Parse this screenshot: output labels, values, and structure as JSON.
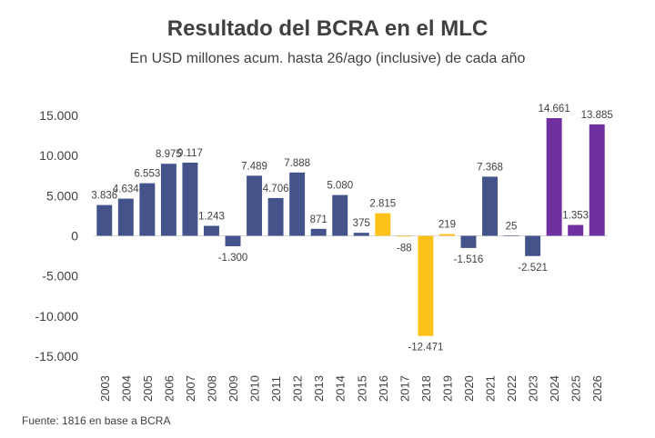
{
  "chart_data": {
    "type": "bar",
    "title": "Resultado del BCRA en el MLC",
    "subtitle": "En USD millones acum. hasta 26/ago (inclusive) de cada año",
    "source": "Fuente: 1816 en base a BCRA",
    "xlabel": "",
    "ylabel": "",
    "ylim": [
      -15000,
      15000
    ],
    "yticks": [
      15000,
      10000,
      5000,
      0,
      -5000,
      -10000,
      -15000
    ],
    "ytick_labels": [
      "15.000",
      "10.000",
      "5.000",
      "0",
      "-5.000",
      "-10.000",
      "-15.000"
    ],
    "grid": false,
    "legend": "none",
    "categories": [
      "2003",
      "2004",
      "2005",
      "2006",
      "2007",
      "2008",
      "2009",
      "2010",
      "2011",
      "2012",
      "2013",
      "2014",
      "2015",
      "2016",
      "2017",
      "2018",
      "2019",
      "2020",
      "2021",
      "2022",
      "2023",
      "2024",
      "2025",
      "2026"
    ],
    "values": [
      3836,
      4634,
      6553,
      8975,
      9117,
      1243,
      -1300,
      7489,
      4706,
      7888,
      871,
      5080,
      375,
      2815,
      -88,
      -12471,
      219,
      -1516,
      7368,
      25,
      -2521,
      14661,
      1353,
      13885
    ],
    "value_labels": [
      "3.836",
      "4.634",
      "6.553",
      "8.975",
      "9.117",
      "1.243",
      "-1.300",
      "7.489",
      "4.706",
      "7.888",
      "871",
      "5.080",
      "375",
      "2.815",
      "-88",
      "-12.471",
      "219",
      "-1.516",
      "7.368",
      "25",
      "-2.521",
      "14.661",
      "1.353",
      "13.885"
    ],
    "colors": [
      "#44548a",
      "#44548a",
      "#44548a",
      "#44548a",
      "#44548a",
      "#44548a",
      "#44548a",
      "#44548a",
      "#44548a",
      "#44548a",
      "#44548a",
      "#44548a",
      "#44548a",
      "#fcc219",
      "#fcc219",
      "#fcc219",
      "#fcc219",
      "#44548a",
      "#44548a",
      "#44548a",
      "#44548a",
      "#7030a0",
      "#7030a0",
      "#7030a0"
    ]
  }
}
